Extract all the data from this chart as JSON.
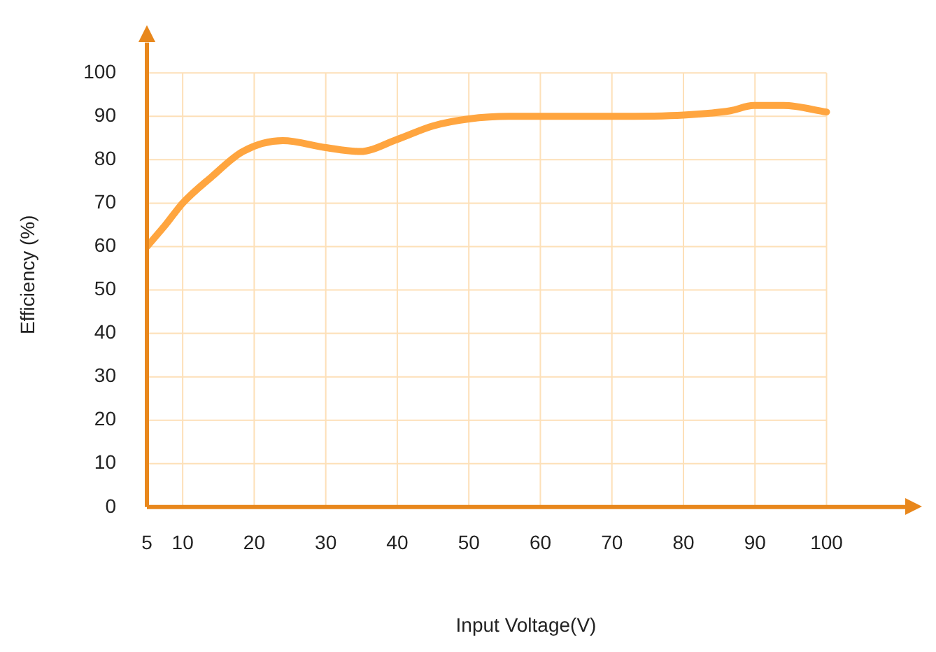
{
  "chart_data": {
    "type": "line",
    "xlabel": "Input Voltage(V)",
    "ylabel": "Efficiency (%)",
    "xlim": [
      5,
      111
    ],
    "xticks": [
      5,
      10,
      20,
      30,
      40,
      50,
      60,
      70,
      80,
      90,
      100
    ],
    "ylim": [
      0,
      107
    ],
    "yticks": [
      0,
      10,
      20,
      30,
      40,
      50,
      60,
      70,
      80,
      90,
      100
    ],
    "grid": true,
    "marker": "none",
    "line_style": "solid",
    "series": [
      {
        "color": "#ffa53f",
        "x": [
          5,
          7.6,
          10,
          14,
          18.4,
          24,
          30,
          34.8,
          40,
          45,
          50,
          55.6,
          60,
          70,
          80,
          86.6,
          89.8,
          94,
          100
        ],
        "values": [
          60,
          65,
          70,
          76,
          81.9,
          84.4,
          82.8,
          81.9,
          84.7,
          87.8,
          89.4,
          90,
          90,
          90,
          90.3,
          91.3,
          92.5,
          92.5,
          91
        ]
      }
    ]
  }
}
